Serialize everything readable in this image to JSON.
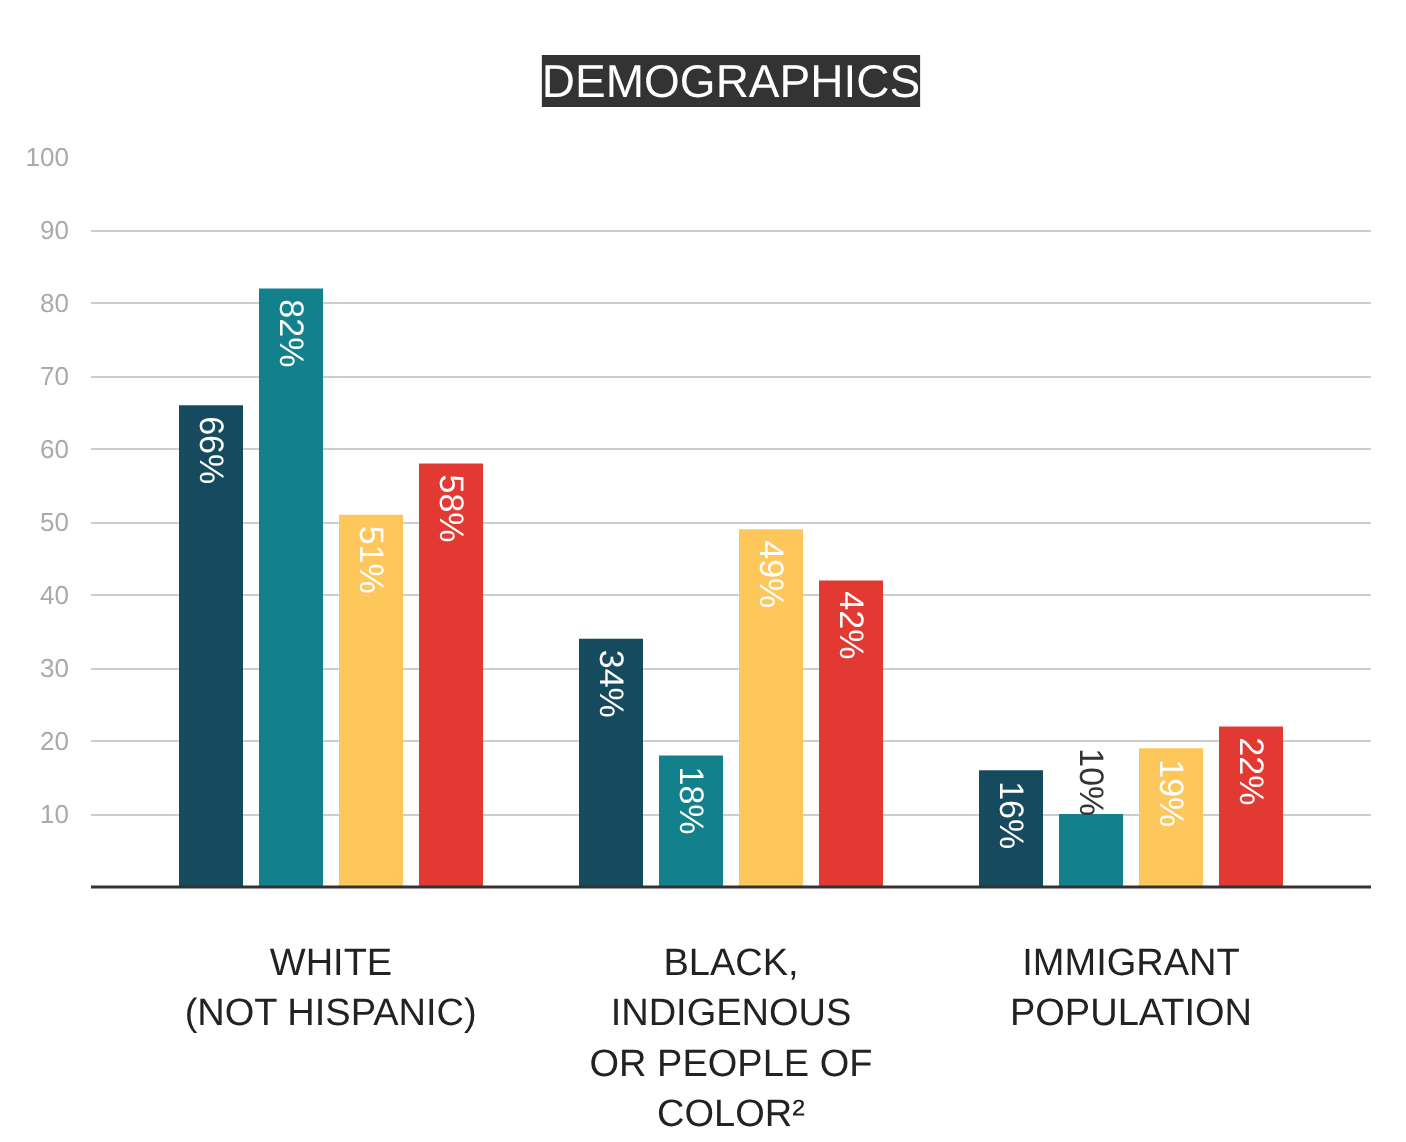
{
  "chart_data": {
    "type": "bar",
    "title": "DEMOGRAPHICS",
    "categories": [
      "WHITE\n(NOT HISPANIC)",
      "BLACK,\nINDIGENOUS\nOR PEOPLE OF\nCOLOR²",
      "IMMIGRANT\nPOPULATION"
    ],
    "series": [
      {
        "color": "#164b5f",
        "values": [
          66,
          34,
          16
        ],
        "value_labels": [
          "66%",
          "34%",
          "16%"
        ]
      },
      {
        "color": "#12818b",
        "values": [
          82,
          18,
          10
        ],
        "value_labels": [
          "82%",
          "18%",
          "10%"
        ]
      },
      {
        "color": "#fdc75b",
        "values": [
          51,
          49,
          19
        ],
        "value_labels": [
          "51%",
          "49%",
          "19%"
        ]
      },
      {
        "color": "#e23a33",
        "values": [
          58,
          42,
          22
        ],
        "value_labels": [
          "58%",
          "42%",
          "22%"
        ]
      }
    ],
    "ylim": [
      0,
      100
    ],
    "yticks": [
      10,
      20,
      30,
      40,
      50,
      60,
      70,
      80,
      90,
      100
    ],
    "grid": "y"
  }
}
